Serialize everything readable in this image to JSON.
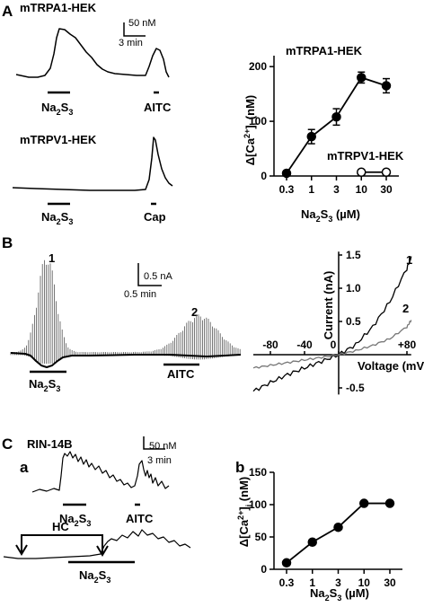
{
  "panels": {
    "A": {
      "letter": "A",
      "trace1_title": "mTRPA1-HEK",
      "trace2_title": "mTRPV1-HEK",
      "scale_y": "50 nM",
      "scale_x": "3 min",
      "stim_na2s3": [
        "Na",
        "2",
        "S",
        "3"
      ],
      "stim_aitc": "AITC",
      "stim_cap": "Cap"
    },
    "B": {
      "letter": "B",
      "scale_y": "0.5 nA",
      "scale_x": "0.5 min",
      "peak1": "1",
      "peak2": "2",
      "stim_na2s3": [
        "Na",
        "2",
        "S",
        "3"
      ],
      "stim_aitc": "AITC",
      "iv_curve1": "1",
      "iv_curve2": "2"
    },
    "C": {
      "letter": "C",
      "cell_line": "RIN-14B",
      "sub_a": "a",
      "sub_b": "b",
      "scale_y": "50 nM",
      "scale_x": "3 min",
      "stim_na2s3": [
        "Na",
        "2",
        "S",
        "3"
      ],
      "stim_aitc": "AITC",
      "hc_label": "HC"
    }
  },
  "chart_data": [
    {
      "panel": "A",
      "type": "line",
      "title": "",
      "xlabel": "Na2S3 (µM)",
      "ylabel": "Δ[Ca2+]i (nM)",
      "x_ticks": [
        "0.3",
        "1",
        "3",
        "10",
        "30"
      ],
      "y_ticks": [
        0,
        100,
        200
      ],
      "ylim": [
        0,
        220
      ],
      "x_scale": "log",
      "series": [
        {
          "name": "mTRPA1-HEK",
          "marker": "filled-circle",
          "x": [
            0.3,
            1,
            3,
            10,
            30
          ],
          "values": [
            5,
            72,
            108,
            180,
            165
          ],
          "errors": [
            3,
            13,
            15,
            10,
            13
          ]
        },
        {
          "name": "mTRPV1-HEK",
          "marker": "open-circle",
          "x": [
            10,
            30
          ],
          "values": [
            7,
            7
          ],
          "errors": [
            0,
            0
          ]
        }
      ]
    },
    {
      "panel": "B",
      "type": "line",
      "title": "",
      "xlabel": "Voltage (mV)",
      "ylabel": "Current  (nA)",
      "x_ticks": [
        "-80",
        "-40",
        "0",
        "+80"
      ],
      "y_ticks": [
        "-0.5",
        "0.5",
        "1.0",
        "1.5"
      ],
      "xlim": [
        -100,
        85
      ],
      "ylim": [
        -0.6,
        1.55
      ],
      "series": [
        {
          "name": "1",
          "x": [
            -100,
            -80,
            -60,
            -40,
            -20,
            0,
            20,
            40,
            60,
            80,
            85
          ],
          "values": [
            -0.55,
            -0.42,
            -0.3,
            -0.2,
            -0.1,
            0,
            0.15,
            0.42,
            0.8,
            1.3,
            1.48
          ]
        },
        {
          "name": "2",
          "x": [
            -100,
            -80,
            -60,
            -40,
            -20,
            0,
            20,
            40,
            60,
            80,
            85
          ],
          "values": [
            -0.2,
            -0.16,
            -0.12,
            -0.08,
            -0.04,
            0,
            0.06,
            0.14,
            0.24,
            0.42,
            0.52
          ]
        }
      ]
    },
    {
      "panel": "C-b",
      "type": "line",
      "title": "",
      "xlabel": "Na2S3 (µM)",
      "ylabel": "Δ[Ca2+]i (nM)",
      "x_ticks": [
        "0.3",
        "1",
        "3",
        "10",
        "30"
      ],
      "y_ticks": [
        0,
        50,
        100,
        150
      ],
      "ylim": [
        0,
        150
      ],
      "x_scale": "log",
      "series": [
        {
          "name": "RIN-14B",
          "marker": "filled-circle",
          "x": [
            0.3,
            1,
            3,
            10,
            30
          ],
          "values": [
            10,
            42,
            65,
            102,
            102
          ]
        }
      ]
    }
  ]
}
